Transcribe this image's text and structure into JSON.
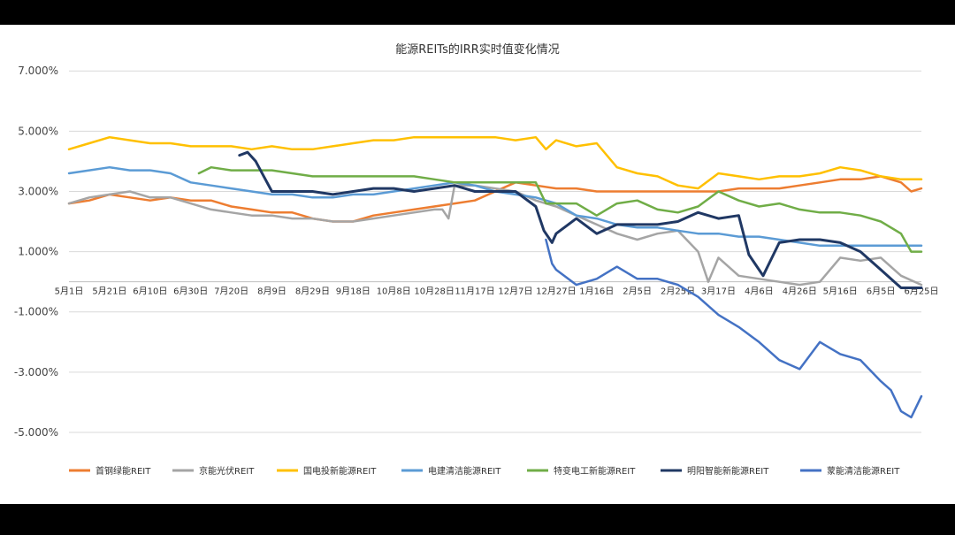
{
  "chart_data": {
    "type": "line",
    "title": "能源REITs的IRR实时值变化情况",
    "xlabel": "",
    "ylabel": "",
    "ylim": [
      -0.055,
      0.073
    ],
    "y_ticks": [
      0.07,
      0.05,
      0.03,
      0.01,
      -0.01,
      -0.03,
      -0.05
    ],
    "y_tick_labels": [
      "7.000%",
      "5.000%",
      "3.000%",
      "1.000%",
      "-1.000%",
      "-3.000%",
      "-5.000%"
    ],
    "x_tick_labels": [
      "5月1日",
      "5月21日",
      "6月10日",
      "6月30日",
      "7月20日",
      "8月9日",
      "8月29日",
      "9月18日",
      "10月8日",
      "10月28日",
      "11月17日",
      "12月7日",
      "12月27日",
      "1月16日",
      "2月5日",
      "2月25日",
      "3月17日",
      "4月6日",
      "4月26日",
      "5月16日",
      "6月5日",
      "6月25日"
    ],
    "x_range": [
      0,
      420
    ],
    "grid": true,
    "legend_position": "bottom",
    "series": [
      {
        "name": "首钢绿能REIT",
        "color": "#ED7D31",
        "x": [
          0,
          10,
          20,
          30,
          40,
          50,
          60,
          70,
          80,
          90,
          100,
          110,
          120,
          130,
          140,
          150,
          160,
          170,
          180,
          190,
          200,
          210,
          220,
          230,
          240,
          250,
          260,
          270,
          280,
          290,
          300,
          310,
          320,
          330,
          340,
          350,
          360,
          370,
          380,
          390,
          400,
          410,
          415,
          420
        ],
        "values": [
          0.026,
          0.027,
          0.029,
          0.028,
          0.027,
          0.028,
          0.027,
          0.027,
          0.025,
          0.024,
          0.023,
          0.023,
          0.021,
          0.02,
          0.02,
          0.022,
          0.023,
          0.024,
          0.025,
          0.026,
          0.027,
          0.03,
          0.033,
          0.032,
          0.031,
          0.031,
          0.03,
          0.03,
          0.03,
          0.03,
          0.03,
          0.03,
          0.03,
          0.031,
          0.031,
          0.031,
          0.032,
          0.033,
          0.034,
          0.034,
          0.035,
          0.033,
          0.03,
          0.031
        ]
      },
      {
        "name": "京能光伏REIT",
        "color": "#A5A5A5",
        "x": [
          0,
          10,
          20,
          30,
          40,
          50,
          60,
          70,
          80,
          90,
          100,
          110,
          120,
          130,
          140,
          150,
          160,
          170,
          180,
          184,
          187,
          190,
          200,
          210,
          220,
          230,
          240,
          250,
          260,
          270,
          280,
          290,
          300,
          310,
          315,
          320,
          330,
          340,
          350,
          360,
          370,
          380,
          390,
          400,
          410,
          420
        ],
        "values": [
          0.026,
          0.028,
          0.029,
          0.03,
          0.028,
          0.028,
          0.026,
          0.024,
          0.023,
          0.022,
          0.022,
          0.021,
          0.021,
          0.02,
          0.02,
          0.021,
          0.022,
          0.023,
          0.024,
          0.024,
          0.021,
          0.032,
          0.032,
          0.031,
          0.03,
          0.027,
          0.025,
          0.022,
          0.019,
          0.016,
          0.014,
          0.016,
          0.017,
          0.01,
          0.0,
          0.008,
          0.002,
          0.001,
          0.0,
          -0.001,
          0.0,
          0.008,
          0.007,
          0.008,
          0.002,
          -0.001
        ]
      },
      {
        "name": "国电投新能源REIT",
        "color": "#FFC000",
        "x": [
          0,
          10,
          20,
          30,
          40,
          50,
          60,
          70,
          80,
          90,
          100,
          110,
          120,
          130,
          140,
          150,
          160,
          170,
          180,
          190,
          200,
          210,
          220,
          230,
          235,
          240,
          250,
          260,
          270,
          280,
          290,
          300,
          310,
          320,
          330,
          340,
          350,
          360,
          370,
          380,
          390,
          400,
          410,
          420
        ],
        "values": [
          0.044,
          0.046,
          0.048,
          0.047,
          0.046,
          0.046,
          0.045,
          0.045,
          0.045,
          0.044,
          0.045,
          0.044,
          0.044,
          0.045,
          0.046,
          0.047,
          0.047,
          0.048,
          0.048,
          0.048,
          0.048,
          0.048,
          0.047,
          0.048,
          0.044,
          0.047,
          0.045,
          0.046,
          0.038,
          0.036,
          0.035,
          0.032,
          0.031,
          0.036,
          0.035,
          0.034,
          0.035,
          0.035,
          0.036,
          0.038,
          0.037,
          0.035,
          0.034,
          0.034
        ]
      },
      {
        "name": "电建清洁能源REIT",
        "color": "#5B9BD5",
        "x": [
          0,
          10,
          20,
          30,
          40,
          50,
          60,
          70,
          80,
          90,
          100,
          110,
          120,
          130,
          140,
          150,
          160,
          170,
          180,
          190,
          200,
          210,
          220,
          230,
          240,
          250,
          260,
          270,
          280,
          290,
          300,
          310,
          320,
          330,
          340,
          350,
          360,
          370,
          380,
          390,
          400,
          410,
          420
        ],
        "values": [
          0.036,
          0.037,
          0.038,
          0.037,
          0.037,
          0.036,
          0.033,
          0.032,
          0.031,
          0.03,
          0.029,
          0.029,
          0.028,
          0.028,
          0.029,
          0.029,
          0.03,
          0.031,
          0.032,
          0.033,
          0.032,
          0.03,
          0.029,
          0.028,
          0.026,
          0.022,
          0.021,
          0.019,
          0.018,
          0.018,
          0.017,
          0.016,
          0.016,
          0.015,
          0.015,
          0.014,
          0.013,
          0.012,
          0.012,
          0.012,
          0.012,
          0.012,
          0.012
        ]
      },
      {
        "name": "特变电工新能源REIT",
        "color": "#70AD47",
        "x": [
          64,
          70,
          80,
          90,
          100,
          110,
          120,
          130,
          140,
          150,
          160,
          170,
          180,
          190,
          200,
          210,
          220,
          230,
          235,
          240,
          250,
          260,
          270,
          280,
          290,
          300,
          310,
          320,
          330,
          340,
          350,
          360,
          370,
          380,
          390,
          400,
          410,
          415,
          420
        ],
        "values": [
          0.036,
          0.038,
          0.037,
          0.037,
          0.037,
          0.036,
          0.035,
          0.035,
          0.035,
          0.035,
          0.035,
          0.035,
          0.034,
          0.033,
          0.033,
          0.033,
          0.033,
          0.033,
          0.026,
          0.026,
          0.026,
          0.022,
          0.026,
          0.027,
          0.024,
          0.023,
          0.025,
          0.03,
          0.027,
          0.025,
          0.026,
          0.024,
          0.023,
          0.023,
          0.022,
          0.02,
          0.016,
          0.01,
          0.01
        ]
      },
      {
        "name": "明阳智能新能源REIT",
        "color": "#203864",
        "x": [
          84,
          88,
          92,
          96,
          100,
          110,
          120,
          130,
          140,
          150,
          160,
          170,
          180,
          190,
          200,
          210,
          220,
          230,
          234,
          238,
          240,
          250,
          260,
          270,
          280,
          290,
          300,
          310,
          320,
          330,
          335,
          340,
          342,
          350,
          360,
          370,
          380,
          390,
          400,
          410,
          420
        ],
        "values": [
          0.042,
          0.043,
          0.04,
          0.035,
          0.03,
          0.03,
          0.03,
          0.029,
          0.03,
          0.031,
          0.031,
          0.03,
          0.031,
          0.032,
          0.03,
          0.03,
          0.03,
          0.025,
          0.017,
          0.013,
          0.016,
          0.021,
          0.016,
          0.019,
          0.019,
          0.019,
          0.02,
          0.023,
          0.021,
          0.022,
          0.009,
          0.004,
          0.002,
          0.013,
          0.014,
          0.014,
          0.013,
          0.01,
          0.004,
          -0.002,
          -0.002
        ]
      },
      {
        "name": "蒙能清洁能源REIT",
        "color": "#4472C4",
        "x": [
          235,
          238,
          240,
          250,
          260,
          270,
          280,
          290,
          300,
          310,
          320,
          330,
          340,
          350,
          360,
          370,
          380,
          390,
          400,
          405,
          410,
          415,
          420
        ],
        "values": [
          0.014,
          0.006,
          0.004,
          -0.001,
          0.001,
          0.005,
          0.001,
          0.001,
          -0.001,
          -0.005,
          -0.011,
          -0.015,
          -0.02,
          -0.026,
          -0.029,
          -0.02,
          -0.024,
          -0.026,
          -0.033,
          -0.036,
          -0.043,
          -0.045,
          -0.038
        ]
      }
    ]
  }
}
